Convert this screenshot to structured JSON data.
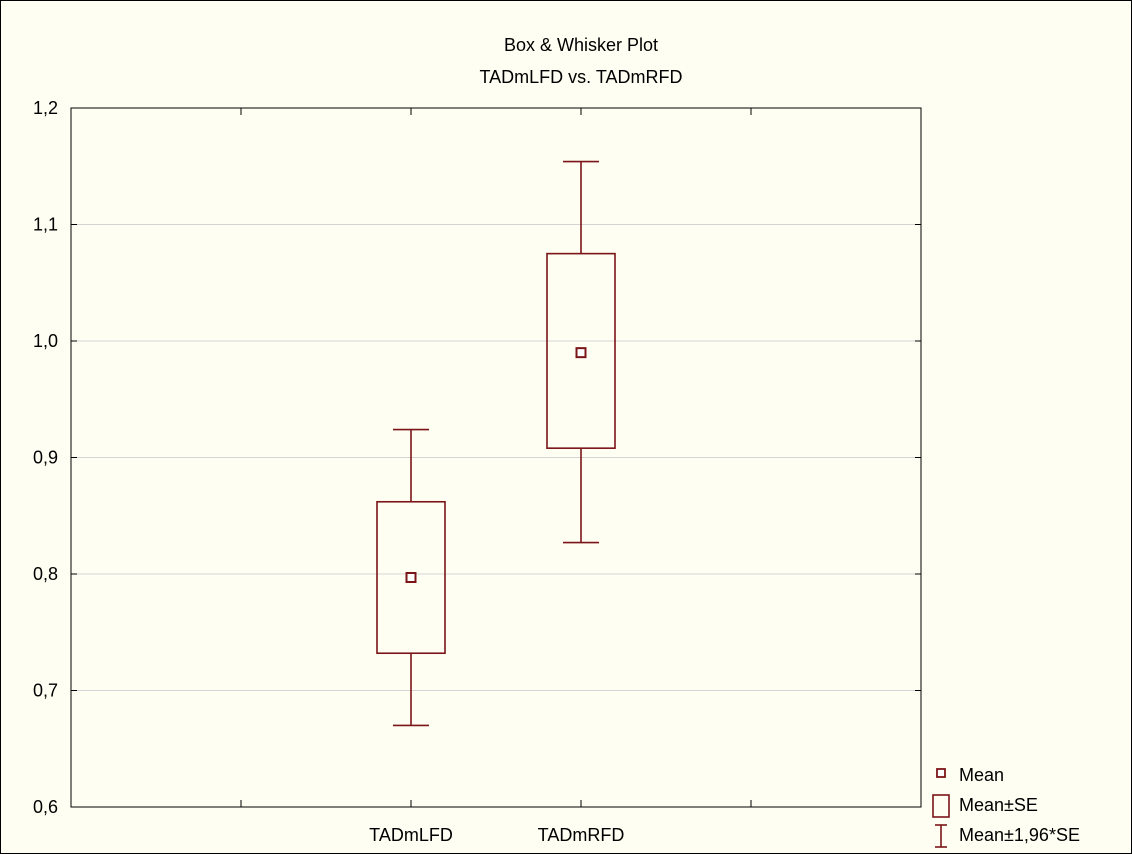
{
  "chart_data": {
    "type": "box",
    "title": "Box & Whisker Plot",
    "subtitle": "TADmLFD  vs. TADmRFD",
    "categories": [
      "TADmLFD",
      "TADmRFD"
    ],
    "series": [
      {
        "name": "Mean",
        "values": [
          0.797,
          0.99
        ]
      },
      {
        "name": "Mean±SE",
        "low": [
          0.732,
          0.908
        ],
        "high": [
          0.862,
          1.075
        ]
      },
      {
        "name": "Mean±1,96*SE",
        "low": [
          0.67,
          0.827
        ],
        "high": [
          0.924,
          1.154
        ]
      }
    ],
    "ylim": [
      0.6,
      1.2
    ],
    "yticks": [
      "0,6",
      "0,7",
      "0,8",
      "0,9",
      "1,0",
      "1,1",
      "1,2"
    ],
    "grid": true,
    "legend_position": "bottom-right",
    "color": "#7b1418"
  }
}
